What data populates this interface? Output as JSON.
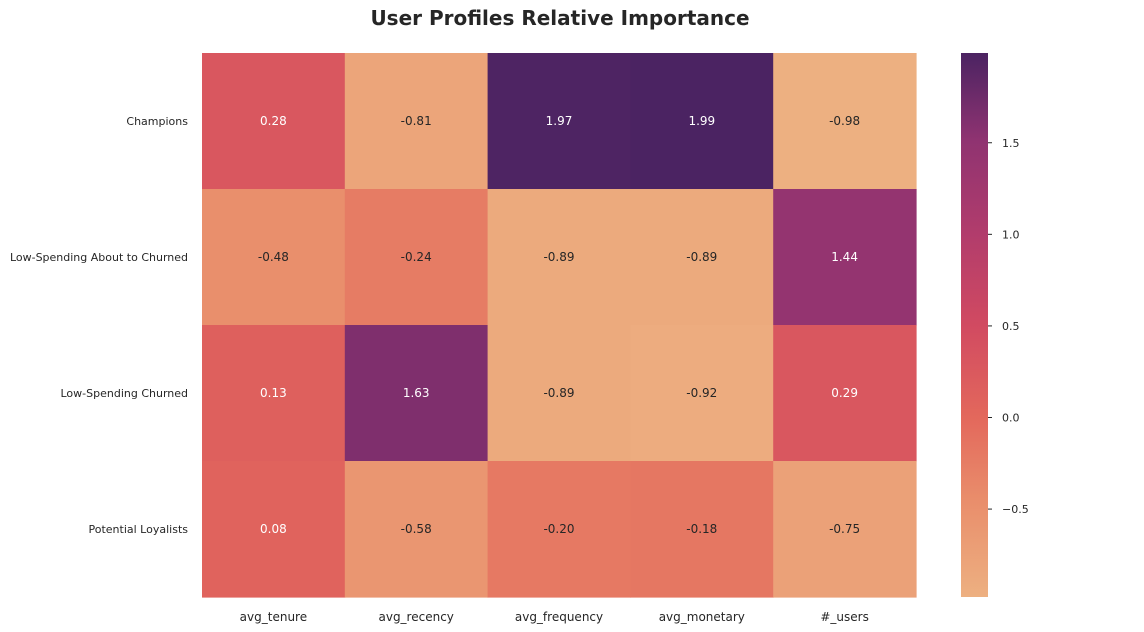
{
  "chart_data": {
    "type": "heatmap",
    "title": "User Profiles Relative Importance",
    "xlabel": "",
    "ylabel": "",
    "rows": [
      "Champions",
      "Low-Spending About to Churned",
      "Low-Spending Churned",
      "Potential Loyalists"
    ],
    "columns": [
      "avg_tenure",
      "avg_recency",
      "avg_frequency",
      "avg_monetary",
      "#_users"
    ],
    "values": [
      [
        0.28,
        -0.81,
        1.97,
        1.99,
        -0.98
      ],
      [
        -0.48,
        -0.24,
        -0.89,
        -0.89,
        1.44
      ],
      [
        0.13,
        1.63,
        -0.89,
        -0.92,
        0.29
      ],
      [
        0.08,
        -0.58,
        -0.2,
        -0.18,
        -0.75
      ]
    ],
    "value_labels": [
      [
        "0.28",
        "-0.81",
        "1.97",
        "1.99",
        "-0.98"
      ],
      [
        "-0.48",
        "-0.24",
        "-0.89",
        "-0.89",
        "1.44"
      ],
      [
        "0.13",
        "1.63",
        "-0.89",
        "-0.92",
        "0.29"
      ],
      [
        "0.08",
        "-0.58",
        "-0.20",
        "-0.18",
        "-0.75"
      ]
    ],
    "colorbar": {
      "range": [
        -0.98,
        1.99
      ],
      "ticks": [
        -0.5,
        0.0,
        0.5,
        1.0,
        1.5
      ],
      "tick_labels": [
        "−0.5",
        "0.0",
        "0.5",
        "1.0",
        "1.5"
      ],
      "colormap": "flare"
    },
    "grid": false,
    "legend": "colorbar-right"
  }
}
